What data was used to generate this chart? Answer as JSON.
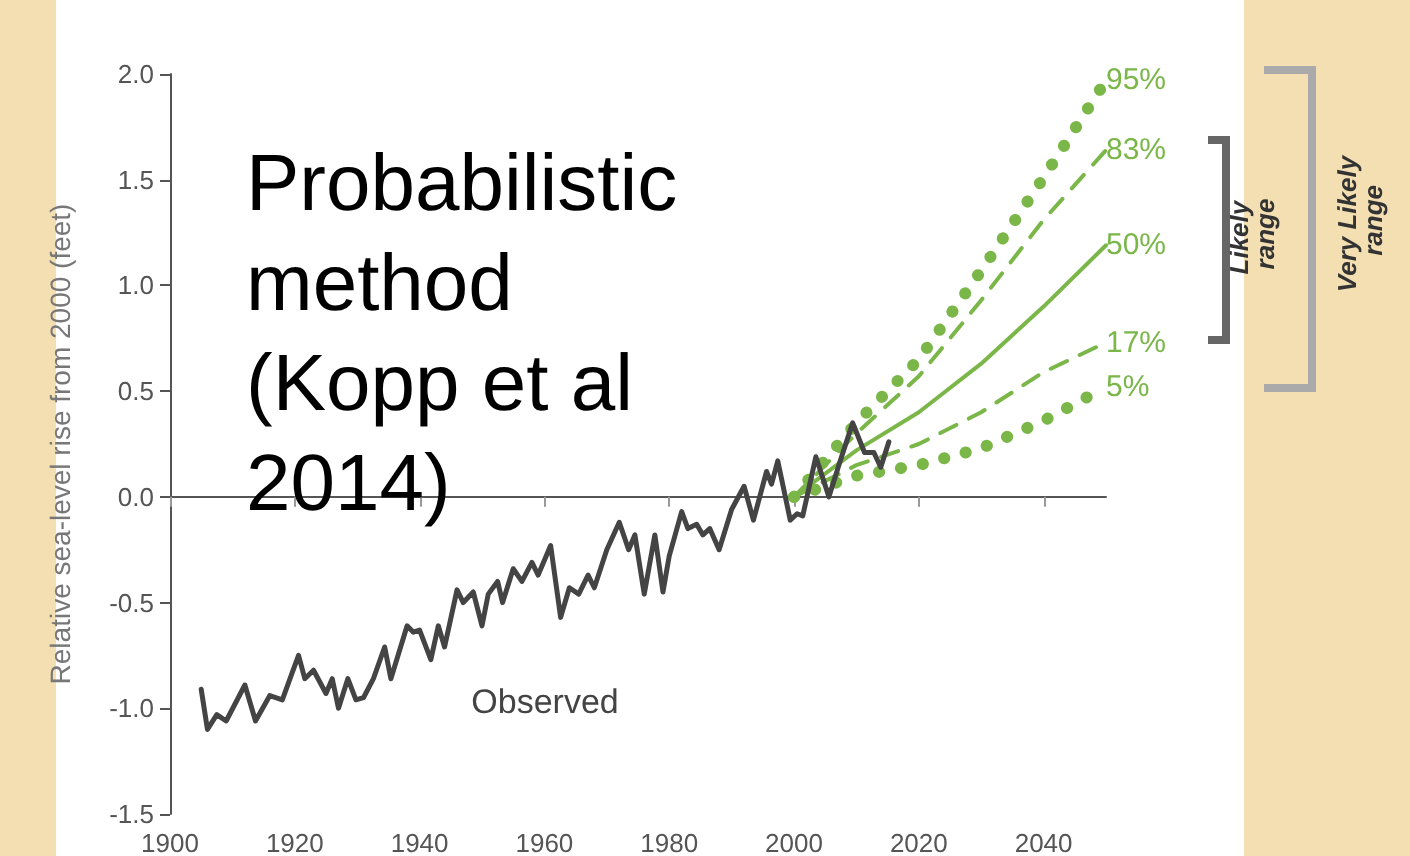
{
  "chart_data": {
    "type": "line",
    "title": "Probabilistic method (Kopp et al 2014)",
    "ylabel": "Relative sea-level rise from 2000 (feet)",
    "xlim": [
      1900,
      2050
    ],
    "xticks": [
      1900,
      1920,
      1940,
      1960,
      1980,
      2000,
      2020,
      2040
    ],
    "ylim": [
      -1.5,
      2.0
    ],
    "yticks": [
      {
        "value": -1.5,
        "label": "-1.5"
      },
      {
        "value": -1,
        "label": "-1.0"
      },
      {
        "value": -0.5,
        "label": "-0.5"
      },
      {
        "value": 0,
        "label": "0.0"
      },
      {
        "value": 0.5,
        "label": "0.5"
      },
      {
        "value": 1,
        "label": "1.0"
      },
      {
        "value": 1.5,
        "label": "1.5"
      },
      {
        "value": 2,
        "label": "2.0"
      }
    ],
    "legend": false,
    "marker": "none",
    "series": [
      {
        "name": "Observed",
        "color": "#444444",
        "line_style": "solid",
        "x": [
          1905,
          1906,
          1907.5,
          1909,
          1912,
          1913.7,
          1916,
          1918,
          1919.6,
          1920.6,
          1921.6,
          1923,
          1925,
          1926,
          1927,
          1928.5,
          1929.8,
          1931,
          1932.6,
          1934.4,
          1935.4,
          1938,
          1939,
          1940,
          1941.8,
          1943,
          1944,
          1946,
          1947,
          1948.6,
          1950,
          1951,
          1952.5,
          1953.3,
          1955,
          1956.4,
          1958,
          1959,
          1961,
          1962.6,
          1964,
          1965.5,
          1967,
          1968,
          1970,
          1972,
          1973.5,
          1974.5,
          1976,
          1977.7,
          1979,
          1980,
          1982,
          1983,
          1984.4,
          1985.4,
          1986.5,
          1988,
          1990,
          1992,
          1993.5,
          1995.6,
          1996.4,
          1997.4,
          1999.4,
          2000.5,
          2001.4,
          2003.5,
          2005.6,
          2007.3,
          2009.4,
          2011.3,
          2012.8,
          2013.9,
          2015.2
        ],
        "values": [
          -0.91,
          -1.1,
          -1.03,
          -1.06,
          -0.89,
          -1.06,
          -0.94,
          -0.96,
          -0.83,
          -0.75,
          -0.86,
          -0.82,
          -0.93,
          -0.86,
          -1.0,
          -0.86,
          -0.96,
          -0.95,
          -0.86,
          -0.71,
          -0.86,
          -0.61,
          -0.64,
          -0.63,
          -0.77,
          -0.61,
          -0.71,
          -0.44,
          -0.5,
          -0.45,
          -0.61,
          -0.46,
          -0.4,
          -0.5,
          -0.34,
          -0.4,
          -0.31,
          -0.37,
          -0.23,
          -0.57,
          -0.43,
          -0.46,
          -0.37,
          -0.43,
          -0.25,
          -0.12,
          -0.25,
          -0.18,
          -0.46,
          -0.18,
          -0.45,
          -0.28,
          -0.07,
          -0.15,
          -0.13,
          -0.18,
          -0.15,
          -0.25,
          -0.06,
          0.05,
          -0.11,
          0.12,
          0.06,
          0.17,
          -0.11,
          -0.08,
          -0.09,
          0.19,
          0.0,
          0.16,
          0.35,
          0.21,
          0.21,
          0.14,
          0.26
        ]
      },
      {
        "name": "95%",
        "color": "#7ab648",
        "line_style": "dotted",
        "x": [
          2000,
          2010,
          2020,
          2030,
          2040,
          2050
        ],
        "values": [
          0,
          0.35,
          0.65,
          1.07,
          1.51,
          1.97
        ]
      },
      {
        "name": "83%",
        "color": "#7ab648",
        "line_style": "dashed",
        "x": [
          2000,
          2010,
          2020,
          2030,
          2040,
          2050
        ],
        "values": [
          0,
          0.3,
          0.57,
          0.93,
          1.31,
          1.64
        ]
      },
      {
        "name": "50%",
        "color": "#7ab648",
        "line_style": "solid",
        "x": [
          2000,
          2010,
          2020,
          2030,
          2040,
          2050
        ],
        "values": [
          0,
          0.22,
          0.4,
          0.63,
          0.9,
          1.19
        ]
      },
      {
        "name": "17%",
        "color": "#7ab648",
        "line_style": "dashed",
        "x": [
          2000,
          2010,
          2020,
          2030,
          2040,
          2050
        ],
        "values": [
          0,
          0.15,
          0.25,
          0.4,
          0.59,
          0.73
        ]
      },
      {
        "name": "5%",
        "color": "#7ab648",
        "line_style": "dotted",
        "x": [
          2000,
          2010,
          2020,
          2030,
          2040,
          2050
        ],
        "values": [
          0,
          0.1,
          0.15,
          0.23,
          0.36,
          0.52
        ]
      }
    ],
    "annotations": [
      "Likely range",
      "Very Likely range"
    ]
  }
}
